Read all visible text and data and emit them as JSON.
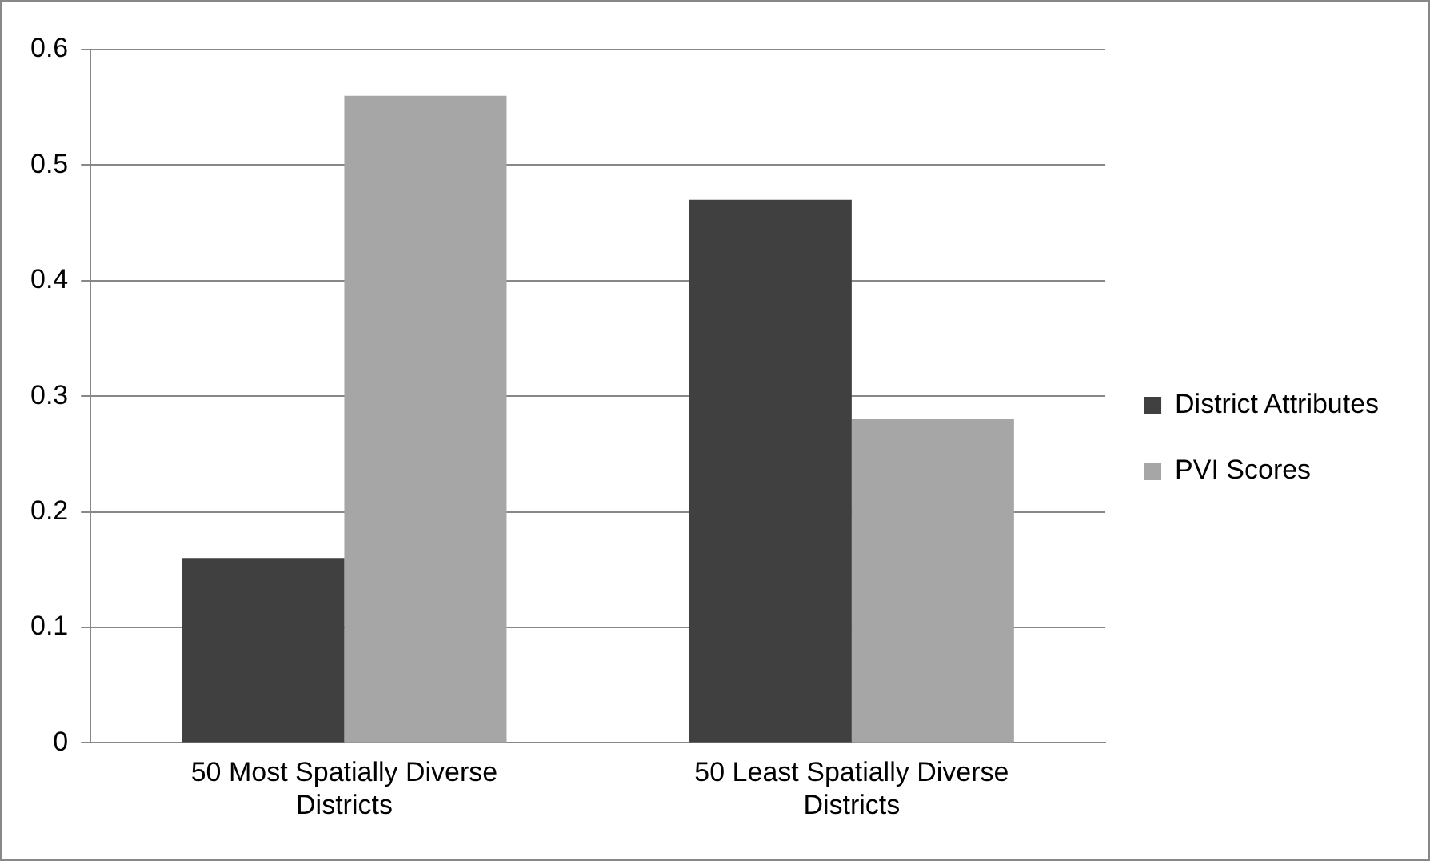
{
  "chart_data": {
    "type": "bar",
    "categories": [
      "50 Most Spatially Diverse Districts",
      "50 Least Spatially Diverse Districts"
    ],
    "series": [
      {
        "name": "District Attributes",
        "color": "#404040",
        "values": [
          0.16,
          0.47
        ]
      },
      {
        "name": "PVI Scores",
        "color": "#a6a6a6",
        "values": [
          0.56,
          0.28
        ]
      }
    ],
    "ylim": [
      0,
      0.6
    ],
    "yticks": [
      0,
      0.1,
      0.2,
      0.3,
      0.4,
      0.5,
      0.6
    ],
    "grid": "y",
    "legend": "right"
  }
}
